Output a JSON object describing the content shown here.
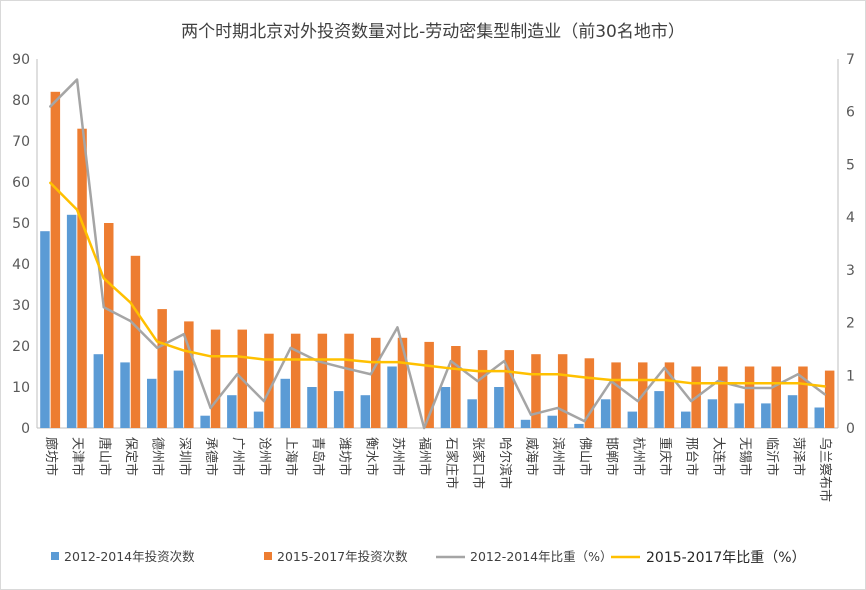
{
  "chart_data": {
    "type": "bar",
    "title": "两个时期北京对外投资数量对比-劳动密集型制造业（前30名地市）",
    "xlabel": "",
    "ylabel": "",
    "y2label": "",
    "categories": [
      "廊坊市",
      "天津市",
      "唐山市",
      "保定市",
      "德州市",
      "深圳市",
      "承德市",
      "广州市",
      "沧州市",
      "上海市",
      "青岛市",
      "潍坊市",
      "衡水市",
      "苏州市",
      "福州市",
      "石家庄市",
      "张家口市",
      "哈尔滨市",
      "威海市",
      "滨州市",
      "佛山市",
      "邯郸市",
      "杭州市",
      "重庆市",
      "邢台市",
      "大连市",
      "无锡市",
      "临沂市",
      "菏泽市",
      "乌兰察布市"
    ],
    "ylim": [
      0,
      90
    ],
    "yticks": [
      0,
      10,
      20,
      30,
      40,
      50,
      60,
      70,
      80,
      90
    ],
    "y2lim": [
      0,
      7
    ],
    "y2ticks": [
      0,
      1,
      2,
      3,
      4,
      5,
      6,
      7
    ],
    "grid": false,
    "legend": "bottom",
    "series": [
      {
        "name": "2012-2014年投资次数",
        "type": "bar",
        "axis": "left",
        "color": "#5b9bd5",
        "values": [
          48,
          52,
          18,
          16,
          12,
          14,
          3,
          8,
          4,
          12,
          10,
          9,
          8,
          15,
          0,
          10,
          7,
          10,
          2,
          3,
          1,
          7,
          4,
          9,
          4,
          7,
          6,
          6,
          8,
          5
        ]
      },
      {
        "name": "2015-2017年投资次数",
        "type": "bar",
        "axis": "left",
        "color": "#ed7d31",
        "values": [
          82,
          73,
          50,
          42,
          29,
          26,
          24,
          24,
          23,
          23,
          23,
          23,
          22,
          22,
          21,
          20,
          19,
          19,
          18,
          18,
          17,
          16,
          16,
          16,
          15,
          15,
          15,
          15,
          15,
          14
        ]
      },
      {
        "name": "2012-2014年比重（%）",
        "type": "line",
        "axis": "right",
        "color": "#a5a5a5",
        "values": [
          6.1,
          6.61,
          2.29,
          2.03,
          1.52,
          1.78,
          0.38,
          1.02,
          0.51,
          1.52,
          1.27,
          1.14,
          1.02,
          1.91,
          0,
          1.27,
          0.89,
          1.27,
          0.25,
          0.38,
          0.13,
          0.89,
          0.51,
          1.14,
          0.51,
          0.89,
          0.76,
          0.76,
          1.02,
          0.64
        ]
      },
      {
        "name": "2015-2017年比重（%）",
        "type": "line",
        "axis": "right",
        "color": "#ffc000",
        "values": [
          4.65,
          4.14,
          2.84,
          2.38,
          1.64,
          1.47,
          1.36,
          1.36,
          1.3,
          1.3,
          1.3,
          1.3,
          1.25,
          1.25,
          1.19,
          1.13,
          1.08,
          1.08,
          1.02,
          1.02,
          0.96,
          0.91,
          0.91,
          0.91,
          0.85,
          0.85,
          0.85,
          0.85,
          0.85,
          0.79
        ]
      }
    ]
  }
}
